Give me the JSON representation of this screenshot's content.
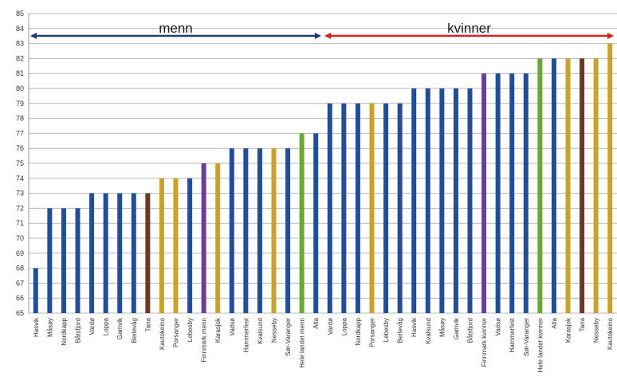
{
  "colors": {
    "blue": "#1f4e9c",
    "gold": "#c9a227",
    "purple": "#6a3d9a",
    "brown": "#6b3a1e",
    "green": "#6aa832",
    "arrow_men": "#1b3f6e",
    "arrow_women": "#e02020",
    "grid": "#b8b8b8"
  },
  "annotations": {
    "men_label": "menn",
    "women_label": "kvinner"
  },
  "chart_data": {
    "type": "bar",
    "ylim": [
      65,
      85
    ],
    "yticks": [
      65,
      66,
      67,
      68,
      69,
      70,
      71,
      72,
      73,
      74,
      75,
      76,
      77,
      78,
      79,
      80,
      81,
      82,
      83,
      84,
      85
    ],
    "grid": true,
    "legend": "none",
    "annotations": [
      {
        "text": "menn",
        "from": "Hasvik",
        "to": "Alta",
        "color": "#1b3f6e"
      },
      {
        "text": "kvinner",
        "from": "Vardø",
        "to": "Kautokeino",
        "color": "#e02020"
      }
    ],
    "categories": [
      "Hasvik",
      "Måsøy",
      "Nordkapp",
      "Båtsfjord",
      "Vardø",
      "Loppa",
      "Gamvik",
      "Berlevåg",
      "Tana",
      "Kautokeino",
      "Porsanger",
      "Lebesby",
      "Finnmark menn",
      "Karasjok",
      "Vadsø",
      "Hammerfest",
      "Kvalsund",
      "Nesseby",
      "Sør-Varanger",
      "Hele landet menn",
      "Alta",
      "Vardø",
      "Loppa",
      "Nordkapp",
      "Porsanger",
      "Lebesby",
      "Berlevåg",
      "Hasvik",
      "Kvalsund",
      "Måsøy",
      "Gamvik",
      "Båtsfjord",
      "Finnmark kvinner",
      "Vadsø",
      "Hammerfest",
      "Sør-Varanger",
      "Hele landet kvinner",
      "Alta",
      "Karasjok",
      "Tana",
      "Nesseby",
      "Kautokeino"
    ],
    "values": [
      68,
      72,
      72,
      72,
      73,
      73,
      73,
      73,
      73,
      74,
      74,
      74,
      75,
      75,
      76,
      76,
      76,
      76,
      76,
      77,
      77,
      79,
      79,
      79,
      79,
      79,
      79,
      80,
      80,
      80,
      80,
      80,
      81,
      81,
      81,
      81,
      82,
      82,
      82,
      82,
      82,
      83
    ],
    "bar_colors": [
      "#1f4e9c",
      "#1f4e9c",
      "#1f4e9c",
      "#1f4e9c",
      "#1f4e9c",
      "#1f4e9c",
      "#1f4e9c",
      "#1f4e9c",
      "#6b3a1e",
      "#c9a227",
      "#c9a227",
      "#1f4e9c",
      "#6a3d9a",
      "#c9a227",
      "#1f4e9c",
      "#1f4e9c",
      "#1f4e9c",
      "#c9a227",
      "#1f4e9c",
      "#6aa832",
      "#1f4e9c",
      "#1f4e9c",
      "#1f4e9c",
      "#1f4e9c",
      "#c9a227",
      "#1f4e9c",
      "#1f4e9c",
      "#1f4e9c",
      "#1f4e9c",
      "#1f4e9c",
      "#1f4e9c",
      "#1f4e9c",
      "#6a3d9a",
      "#1f4e9c",
      "#1f4e9c",
      "#1f4e9c",
      "#6aa832",
      "#1f4e9c",
      "#c9a227",
      "#6b3a1e",
      "#c9a227",
      "#c9a227"
    ]
  }
}
